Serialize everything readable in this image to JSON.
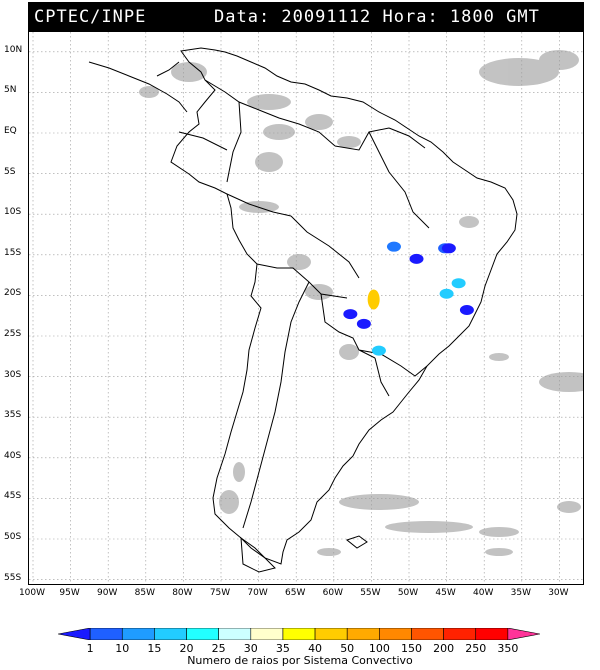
{
  "header": {
    "source": "CPTEC/INPE",
    "datetime": "Data: 20091112 Hora: 1800 GMT"
  },
  "map": {
    "lat_labels": [
      "10N",
      "5N",
      "EQ",
      "5S",
      "10S",
      "15S",
      "20S",
      "25S",
      "30S",
      "35S",
      "40S",
      "45S",
      "50S",
      "55S"
    ],
    "lon_labels": [
      "100W",
      "95W",
      "90W",
      "85W",
      "80W",
      "75W",
      "70W",
      "65W",
      "60W",
      "55W",
      "50W",
      "45W",
      "40W",
      "35W",
      "30W"
    ]
  },
  "legend": {
    "ticks": [
      "1",
      "10",
      "15",
      "20",
      "25",
      "30",
      "35",
      "40",
      "50",
      "100",
      "150",
      "200",
      "250",
      "350"
    ],
    "caption": "Numero de raios por Sistema Convectivo",
    "colors": [
      "#1a1aff",
      "#1f60ff",
      "#1f9cff",
      "#22ccff",
      "#22ffff",
      "#ccffff",
      "#ffffcc",
      "#ffff00",
      "#ffcc00",
      "#ffaa00",
      "#ff8800",
      "#ff5500",
      "#ff2200",
      "#ff0000",
      "#ff3399"
    ]
  },
  "systems": [
    {
      "lon": -52.0,
      "lat": -14.0,
      "color": "#1f78ff"
    },
    {
      "lon": -49.0,
      "lat": -15.5,
      "color": "#1a1aff"
    },
    {
      "lon": -45.2,
      "lat": -14.2,
      "color": "#1f60ff"
    },
    {
      "lon": -44.7,
      "lat": -14.2,
      "color": "#1a1aff"
    },
    {
      "lon": -54.7,
      "lat": -20.5,
      "color": "#ffcc00"
    },
    {
      "lon": -45.0,
      "lat": -19.8,
      "color": "#22ccff"
    },
    {
      "lon": -43.4,
      "lat": -18.5,
      "color": "#22ccff"
    },
    {
      "lon": -42.3,
      "lat": -21.8,
      "color": "#1a1aff"
    },
    {
      "lon": -57.8,
      "lat": -22.3,
      "color": "#1a1aff"
    },
    {
      "lon": -56.0,
      "lat": -23.5,
      "color": "#1a1aff"
    },
    {
      "lon": -54.0,
      "lat": -26.8,
      "color": "#22ccff"
    }
  ]
}
